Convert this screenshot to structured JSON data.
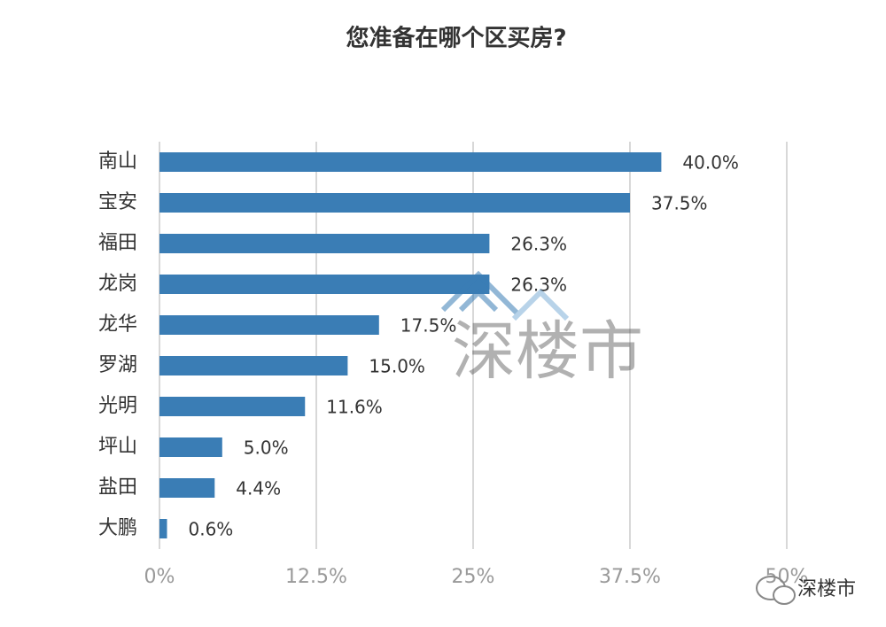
{
  "chart_data": {
    "type": "hbar",
    "title": "您准备在哪个区买房?",
    "categories": [
      "南山",
      "宝安",
      "福田",
      "龙岗",
      "龙华",
      "罗湖",
      "光明",
      "坪山",
      "盐田",
      "大鹏"
    ],
    "values": [
      40.0,
      37.5,
      26.3,
      26.3,
      17.5,
      15.0,
      11.6,
      5.0,
      4.4,
      0.6
    ],
    "value_labels": [
      "40.0%",
      "37.5%",
      "26.3%",
      "26.3%",
      "17.5%",
      "15.0%",
      "11.6%",
      "5.0%",
      "4.4%",
      "0.6%"
    ],
    "color": "#3a7db5",
    "xlim": [
      0,
      50
    ],
    "xticks": [
      {
        "value": 0,
        "label": "0%"
      },
      {
        "value": 12.5,
        "label": "12.5%"
      },
      {
        "value": 25,
        "label": "25%"
      },
      {
        "value": 37.5,
        "label": "37.5%"
      },
      {
        "value": 50,
        "label": "50%"
      }
    ],
    "grid": true,
    "watermark": "深楼市",
    "source": "深楼市"
  }
}
